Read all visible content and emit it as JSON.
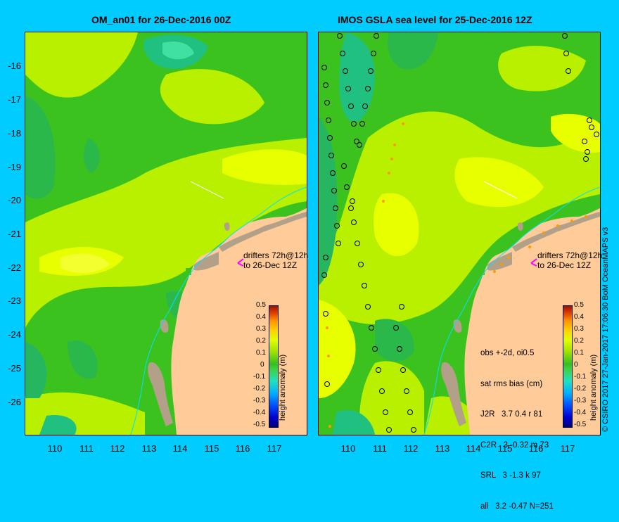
{
  "titles": {
    "left": "OM_an01 for 26-Dec-2016 00Z",
    "right": "IMOS GSLA sea level  for 25-Dec-2016 12Z"
  },
  "y_ticks": [
    "-16",
    "-17",
    "-18",
    "-19",
    "-20",
    "-21",
    "-22",
    "-23",
    "-24",
    "-25",
    "-26"
  ],
  "x_ticks": [
    "110",
    "111",
    "112",
    "113",
    "114",
    "115",
    "116",
    "117"
  ],
  "drifters": {
    "line1": "drifters 72h@12h",
    "line2": "to 26-Dec 12Z"
  },
  "obs_stats": {
    "line1": "obs +-2d, oi0.5",
    "line2": "sat rms bias (cm)",
    "line3": "J2R   3.7 0.4 r 81",
    "line4": "C2R   3 -0.32 m 73",
    "line5": "SRL   3 -1.3 k 97",
    "line6": "all   3.2 -0.47 N=251"
  },
  "colorbar": {
    "ticks": [
      "0.5",
      "0.4",
      "0.3",
      "0.2",
      "0.1",
      "0",
      "-0.1",
      "-0.2",
      "-0.3",
      "-0.4",
      "-0.5"
    ],
    "label": "height anomaly (m)"
  },
  "credit": "© CSIRO 2017   27-Jan-2017 17:06:30 BoM OceanMAPS v3",
  "colors": {
    "background": "#00ccff",
    "land": "#ffcc99",
    "reef": "#b3a089",
    "field_green": "#3cc21e",
    "field_lime": "#b8f000",
    "field_yellow": "#e8ff00",
    "field_teal": "#20c080",
    "drifter_marker": "#ff00ff"
  }
}
